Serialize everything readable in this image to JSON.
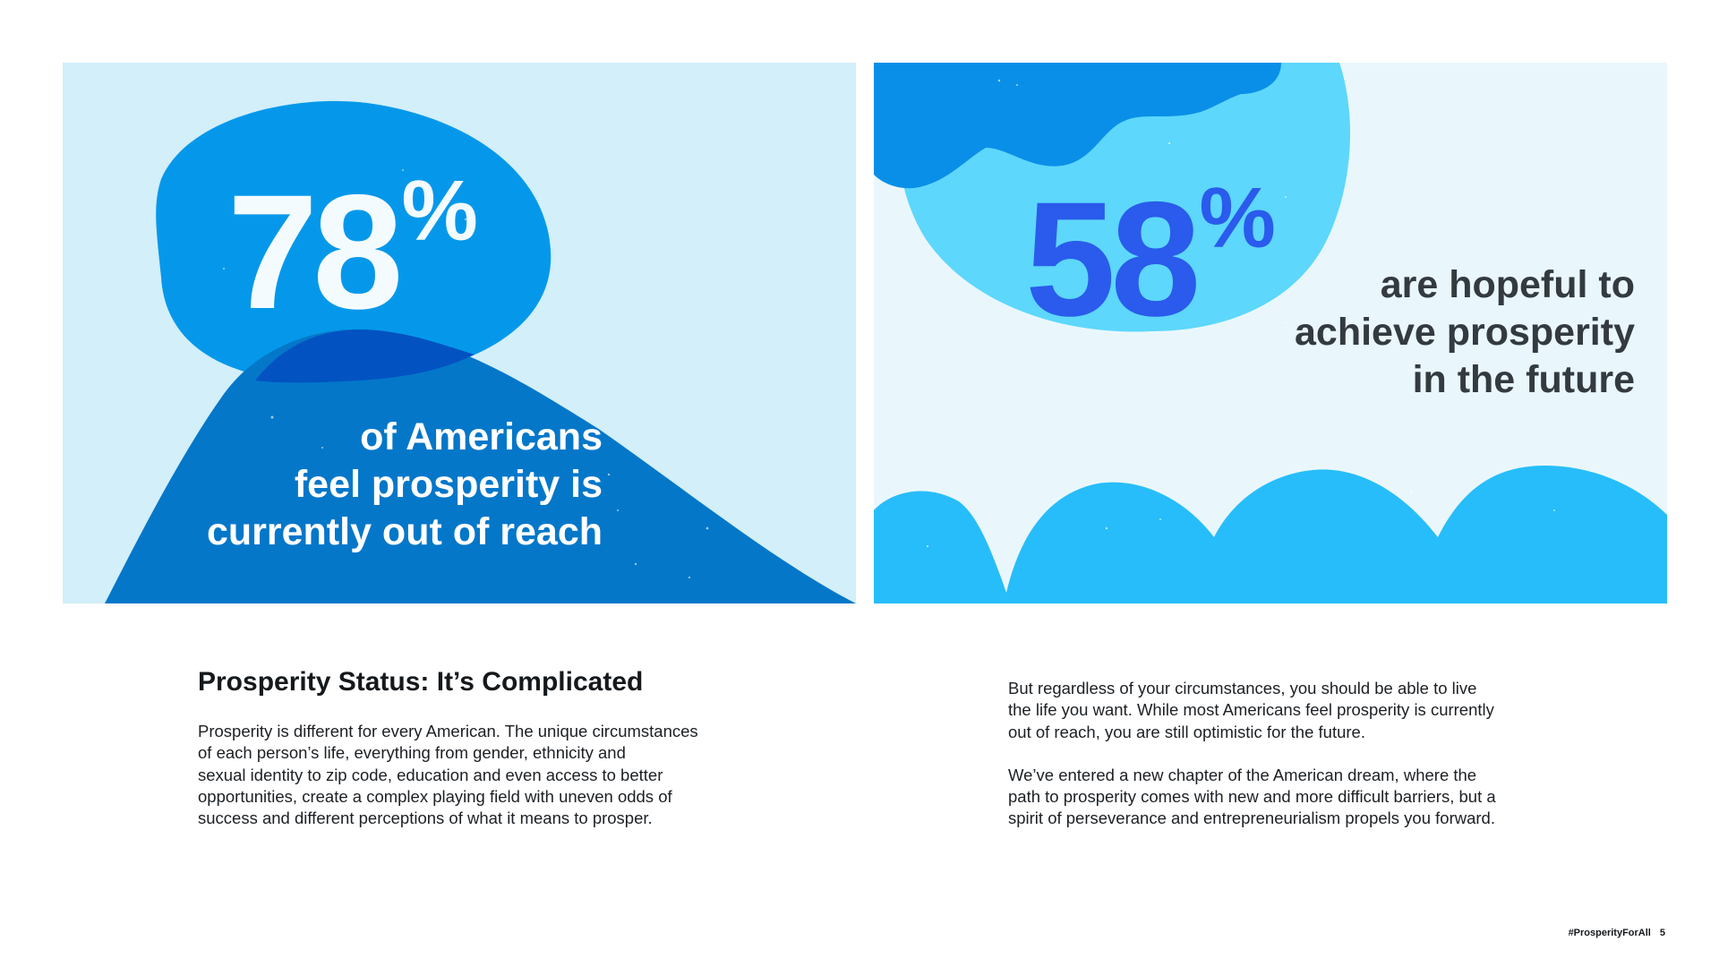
{
  "stat_left": {
    "number": "78",
    "percent_sign": "%",
    "caption_lines": [
      "of Americans",
      "feel prosperity is",
      "currently out of reach"
    ]
  },
  "stat_right": {
    "number": "58",
    "percent_sign": "%",
    "caption_lines": [
      "are hopeful to",
      "achieve prosperity",
      "in the future"
    ]
  },
  "article": {
    "heading": "Prosperity Status: It’s Complicated",
    "left_paragraph_lines": [
      "Prosperity is different for every American. The unique circumstances",
      "of each person’s life, everything from gender, ethnicity and",
      "sexual identity to zip code, education and even access to better",
      "opportunities, create a complex playing field with uneven odds of",
      "success and different perceptions of what it means to prosper."
    ],
    "right_paragraph_1_lines": [
      "But regardless of your circumstances, you should be able to live",
      "the life you want. While most Americans feel prosperity is currently",
      "out of reach, you are still optimistic for the future."
    ],
    "right_paragraph_2_lines": [
      "We’ve entered a new chapter of the American dream, where the",
      "path to prosperity comes with new and more difficult barriers, but a",
      "spirit of perseverance and entrepreneurialism propels you forward."
    ]
  },
  "footer": {
    "hashtag": "#ProsperityForAll",
    "page_number": "5"
  },
  "colors": {
    "left_panel_bg": "#d2effa",
    "right_panel_bg": "#e9f7fd",
    "blob_blue": "#0598ea",
    "hill_blue": "#0477c9",
    "overlap_blue": "#0352c2",
    "sun_cyan": "#5dd7fc",
    "cloud_blue": "#0a8fe8",
    "scallop_blue": "#27bdfa",
    "stat_right_blue": "#2a5bec",
    "caption_dark": "#333a40"
  }
}
